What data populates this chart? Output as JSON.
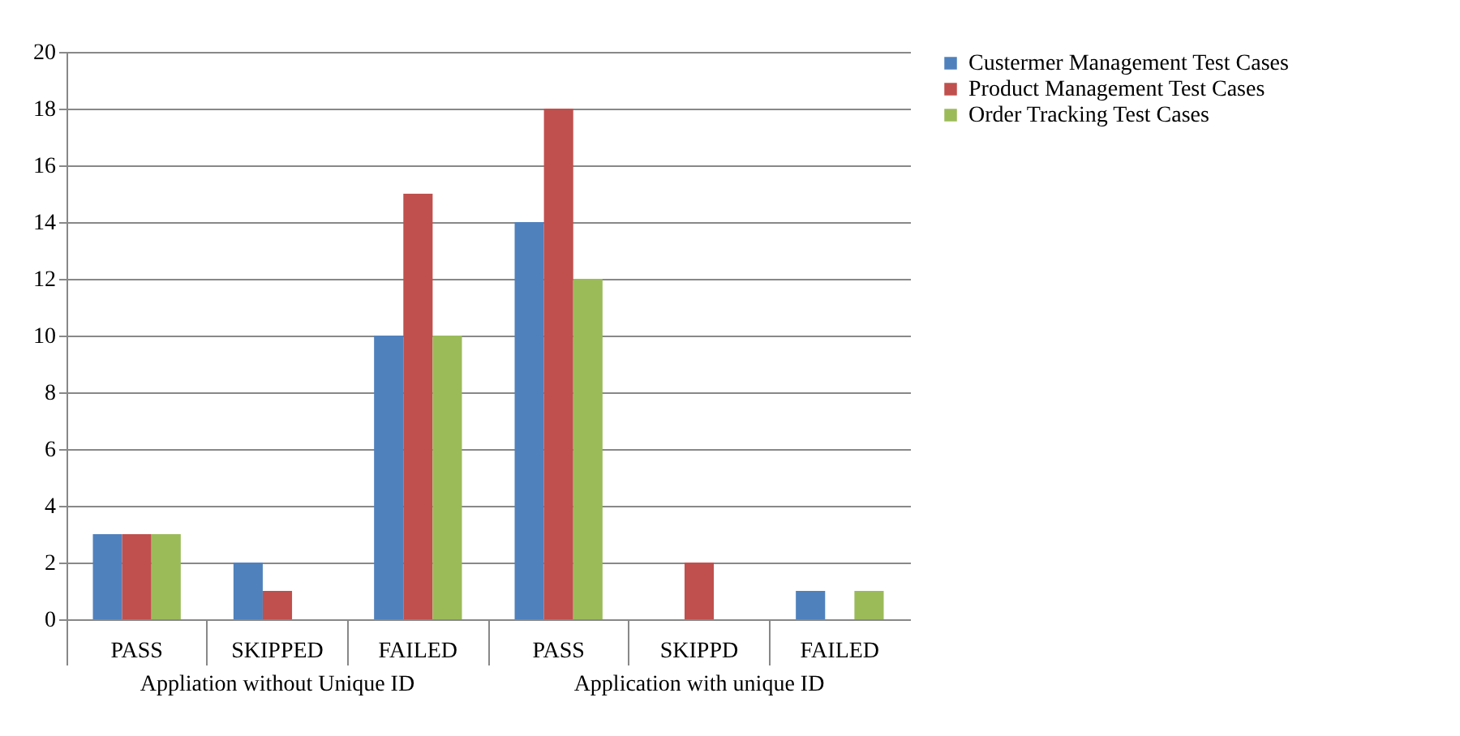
{
  "chart_data": {
    "type": "bar",
    "categories": [
      "PASS",
      "SKIPPED",
      "FAILED",
      "PASS",
      "SKIPPD",
      "FAILED"
    ],
    "series": [
      {
        "name": "Custermer Management Test Cases",
        "color": "#4f81bd",
        "values": [
          3,
          2,
          10,
          14,
          0,
          1
        ]
      },
      {
        "name": "Product Management Test Cases",
        "color": "#c0504d",
        "values": [
          3,
          1,
          15,
          18,
          2,
          0
        ]
      },
      {
        "name": "Order Tracking Test Cases",
        "color": "#9bbb59",
        "values": [
          3,
          0,
          10,
          12,
          0,
          1
        ]
      }
    ],
    "annotations": [
      "Appliation without Unique ID",
      "Application with unique ID"
    ],
    "ylim": [
      0,
      20
    ],
    "yticks": [
      0,
      2,
      4,
      6,
      8,
      10,
      12,
      14,
      16,
      18,
      20
    ],
    "grid": "y",
    "legend": "right"
  }
}
